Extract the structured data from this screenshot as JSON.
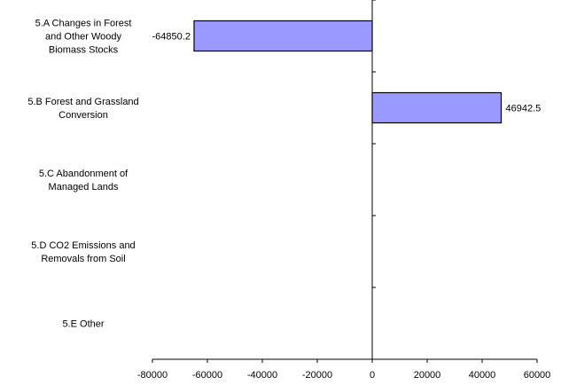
{
  "chart_data": {
    "type": "bar",
    "orientation": "horizontal",
    "title": "",
    "xlabel": "",
    "ylabel": "",
    "categories": [
      [
        "5.A Changes in Forest",
        "and Other Woody",
        "Biomass Stocks"
      ],
      [
        "5.B Forest and Grassland",
        "Conversion"
      ],
      [
        "5.C Abandonment of",
        "Managed Lands"
      ],
      [
        "5.D CO2 Emissions and",
        "Removals from Soil"
      ],
      [
        "5.E Other"
      ]
    ],
    "values": [
      -64850.2,
      46942.5,
      null,
      null,
      null
    ],
    "data_labels": [
      "-64850.2",
      "46942.5",
      "",
      "",
      ""
    ],
    "xlim": [
      -80000,
      60000
    ],
    "x_ticks": [
      -80000,
      -60000,
      -40000,
      -20000,
      0,
      20000,
      40000,
      60000
    ],
    "x_tick_labels": [
      "-80000",
      "-60000",
      "-40000",
      "-20000",
      "0",
      "20000",
      "40000",
      "60000"
    ],
    "grid": false,
    "legend": "none",
    "colors": {
      "bar_fill": "#9999ff",
      "bar_stroke": "#000000",
      "axis": "#000000",
      "text": "#000000"
    }
  }
}
